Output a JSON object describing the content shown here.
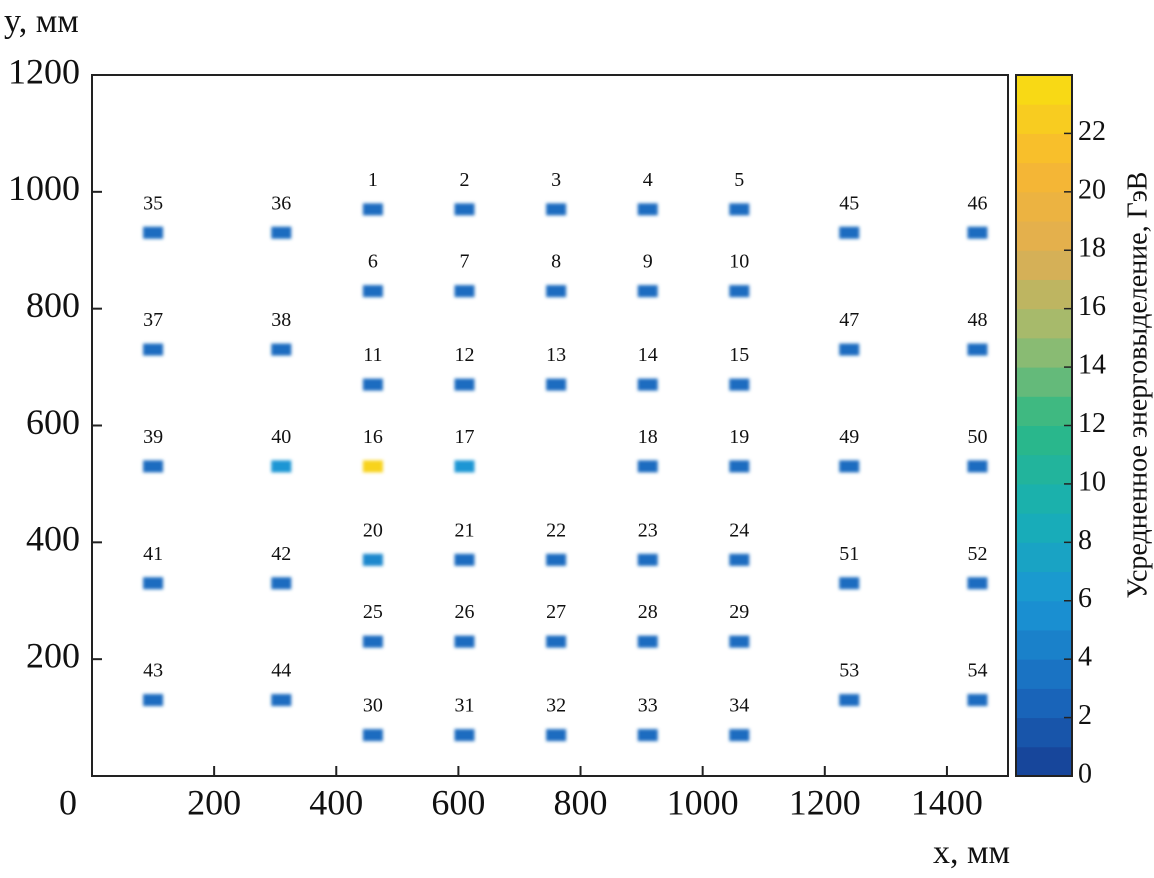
{
  "chart_data": {
    "type": "scatter",
    "x_label": "x, мм",
    "y_label": "y, мм",
    "colorbar_label": "Усредненное энерговыделение, ГэВ",
    "labels": [
      "1",
      "2",
      "3",
      "4",
      "5",
      "6",
      "7",
      "8",
      "9",
      "10",
      "11",
      "12",
      "13",
      "14",
      "15",
      "16",
      "17",
      "18",
      "19",
      "20",
      "21",
      "22",
      "23",
      "24",
      "25",
      "26",
      "27",
      "28",
      "29",
      "30",
      "31",
      "32",
      "33",
      "34",
      "35",
      "36",
      "37",
      "38",
      "39",
      "40",
      "41",
      "42",
      "43",
      "44",
      "45",
      "46",
      "47",
      "48",
      "49",
      "50",
      "51",
      "52",
      "53",
      "54"
    ],
    "x": [
      460,
      610,
      760,
      910,
      1060,
      460,
      610,
      760,
      910,
      1060,
      460,
      610,
      760,
      910,
      1060,
      460,
      610,
      910,
      1060,
      460,
      610,
      760,
      910,
      1060,
      460,
      610,
      760,
      910,
      1060,
      460,
      610,
      760,
      910,
      1060,
      100,
      310,
      100,
      310,
      100,
      310,
      100,
      310,
      100,
      310,
      1240,
      1450,
      1240,
      1450,
      1240,
      1450,
      1240,
      1450,
      1240,
      1450
    ],
    "y": [
      970,
      970,
      970,
      970,
      970,
      830,
      830,
      830,
      830,
      830,
      670,
      670,
      670,
      670,
      670,
      530,
      530,
      530,
      530,
      370,
      370,
      370,
      370,
      370,
      230,
      230,
      230,
      230,
      230,
      70,
      70,
      70,
      70,
      70,
      930,
      930,
      730,
      730,
      530,
      530,
      330,
      330,
      130,
      130,
      930,
      930,
      730,
      730,
      530,
      530,
      330,
      330,
      130,
      130
    ],
    "values": [
      3,
      3,
      3,
      3,
      3,
      3,
      3,
      3,
      3,
      3,
      3,
      3,
      3,
      3,
      3,
      23,
      6,
      3,
      3,
      5,
      3,
      3,
      3,
      3,
      3,
      3,
      3,
      3,
      3,
      3,
      3,
      3,
      3,
      3,
      3,
      3,
      3,
      3,
      3,
      6,
      3,
      3,
      3,
      3,
      3,
      3,
      3,
      3,
      3,
      3,
      3,
      3,
      3,
      3
    ],
    "xlim": [
      0,
      1500
    ],
    "xticks": [
      0,
      200,
      400,
      600,
      800,
      1000,
      1200,
      1400
    ],
    "ylim": [
      0,
      1200
    ],
    "yticks": [
      200,
      400,
      600,
      800,
      1000,
      1200
    ],
    "clim": [
      0,
      24
    ],
    "cticks": [
      0,
      2,
      4,
      6,
      8,
      10,
      12,
      14,
      16,
      18,
      20,
      22
    ],
    "colormap": [
      "#163e94",
      "#1a6cc0",
      "#1a96d4",
      "#18b0b4",
      "#2cb884",
      "#9cbc70",
      "#e0ae52",
      "#f8b830",
      "#f8e010"
    ]
  }
}
